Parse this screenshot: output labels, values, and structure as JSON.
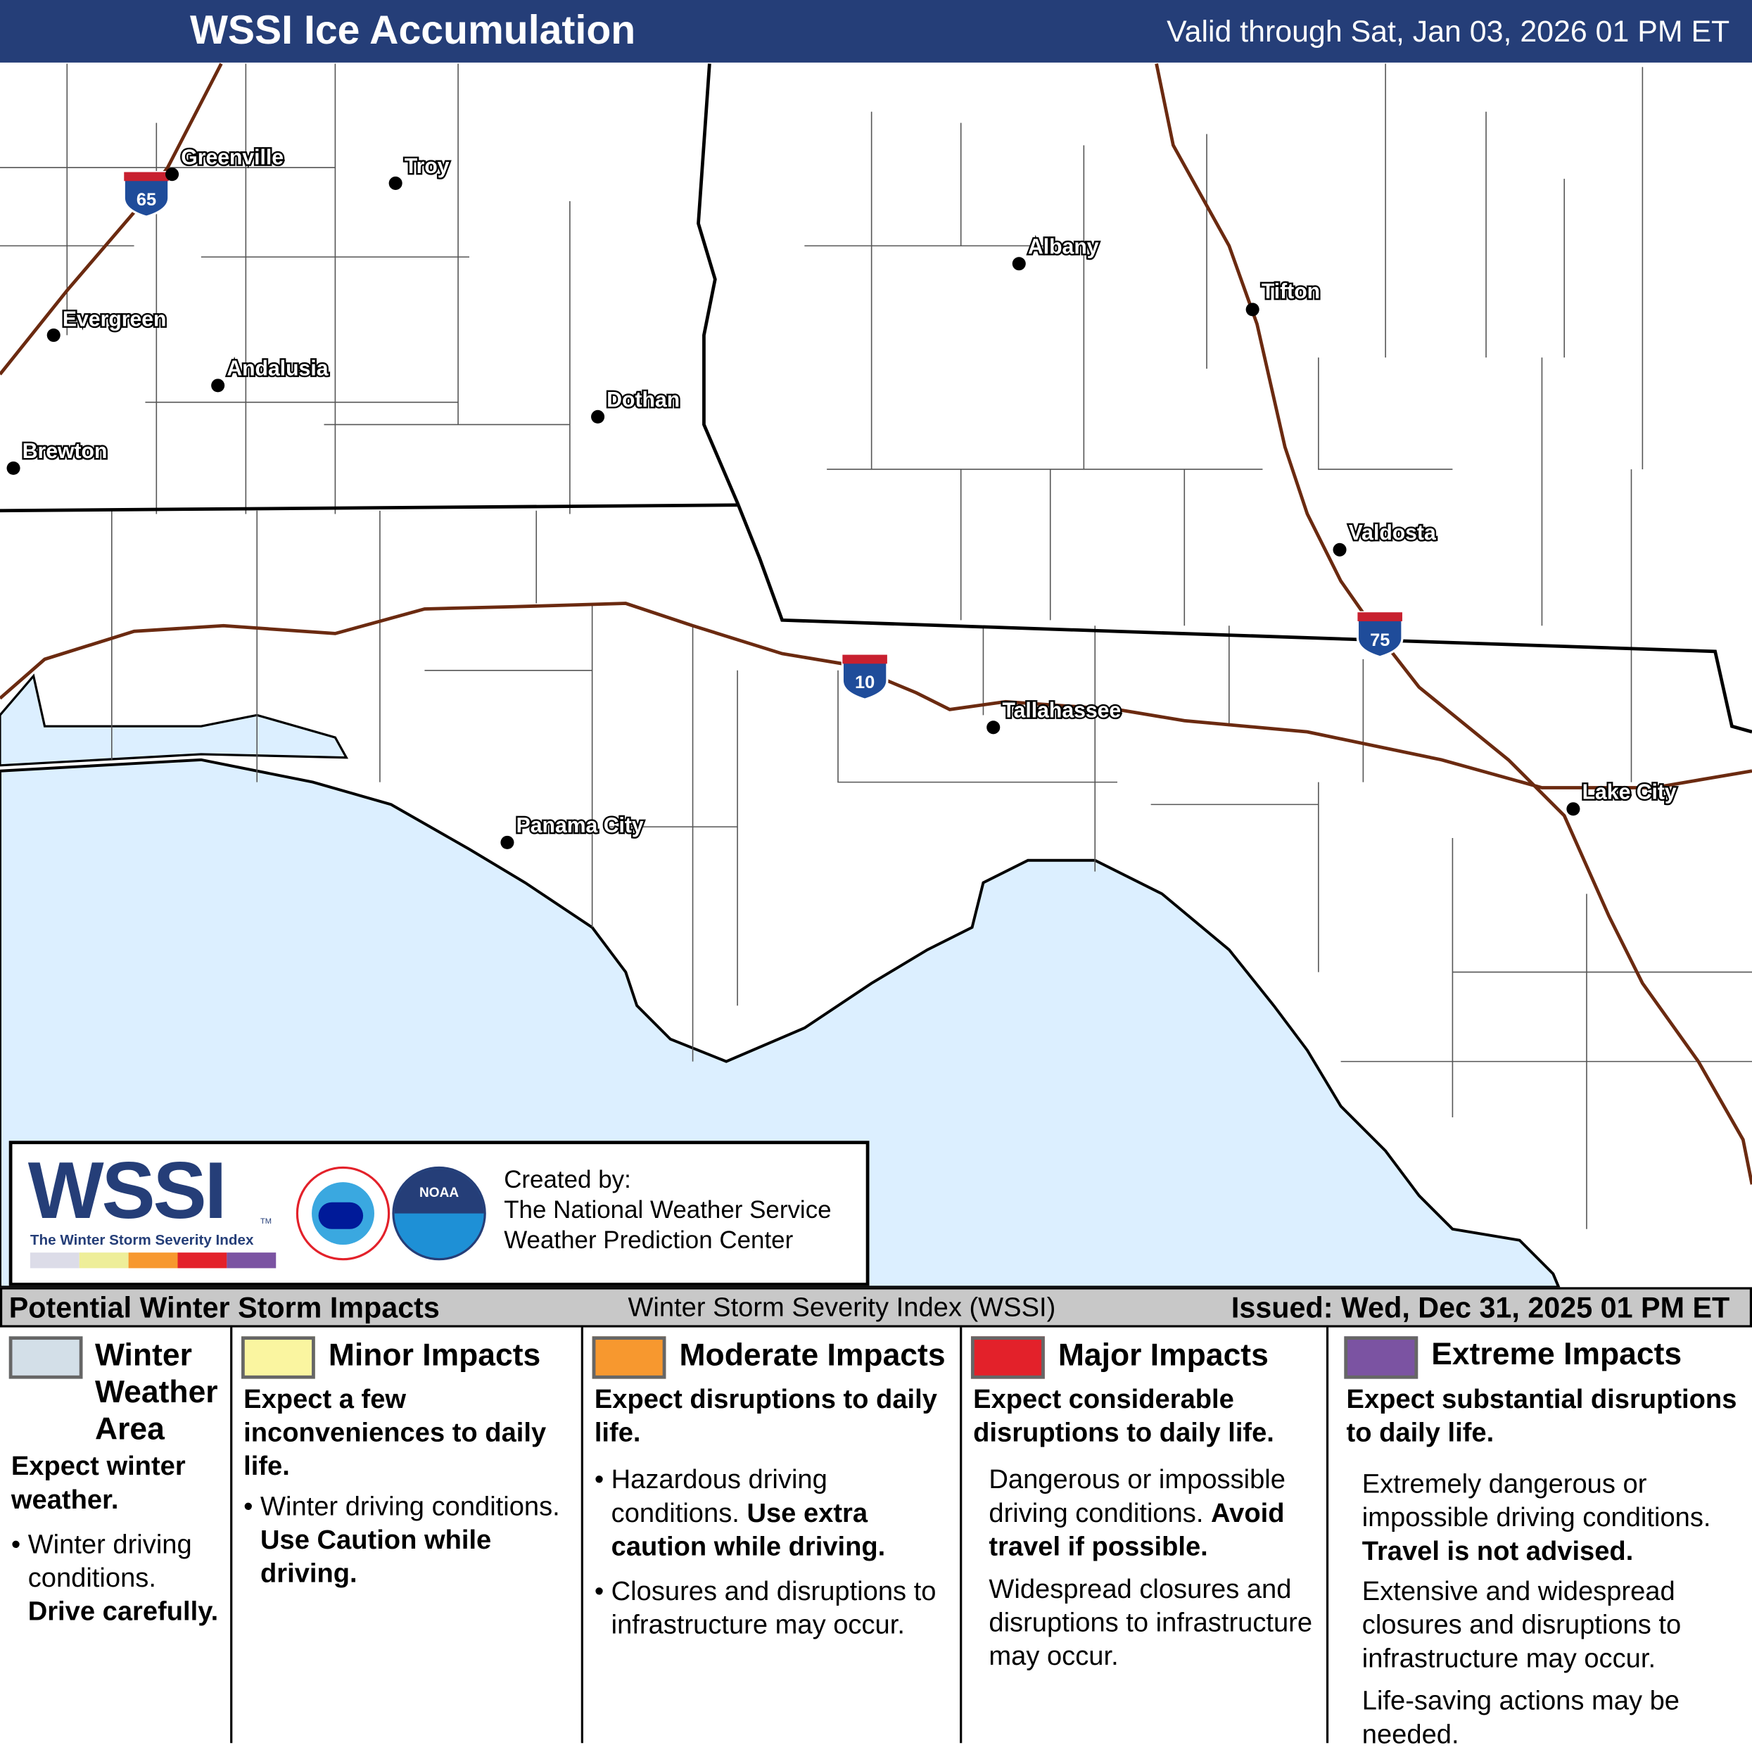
{
  "header": {
    "title": "WSSI Ice Accumulation",
    "valid": "Valid through Sat, Jan 03, 2026 01 PM ET"
  },
  "map": {
    "water_color": "#dcefff",
    "cities": [
      "Greenville",
      "Troy",
      "Evergreen",
      "Andalusia",
      "Brewton",
      "Dothan",
      "Albany",
      "Tifton",
      "Valdosta",
      "Tallahassee",
      "Panama City",
      "Lake City"
    ],
    "interstates": [
      "65",
      "10",
      "75"
    ]
  },
  "logo": {
    "wssi": "WSSI",
    "tm": "TM",
    "tagline": "The Winter Storm Severity Index",
    "scale_colors": [
      "#dcdce8",
      "#eeee99",
      "#f7982f",
      "#e3212a",
      "#7b53a2"
    ],
    "nws": "NATIONAL WEATHER SERVICE",
    "noaa": "NOAA",
    "created_by": "Created by:",
    "org1": "The National Weather Service",
    "org2": "Weather Prediction Center"
  },
  "legend_bar": {
    "left": "Potential Winter Storm Impacts",
    "center": "Winter Storm Severity Index (WSSI)",
    "right": "Issued: Wed, Dec 31, 2025 01 PM ET"
  },
  "legend": [
    {
      "title": "Winter Weather Area",
      "color": "#d3dfe8",
      "headline": "Expect winter weather.",
      "b1": "Winter driving conditions.",
      "b1b": "Drive carefully."
    },
    {
      "title": "Minor Impacts",
      "color": "#faf5a0",
      "headline": "Expect a few inconveniences to daily life.",
      "b1": "Winter driving conditions.",
      "b1b": "Use Caution while driving."
    },
    {
      "title": "Moderate Impacts",
      "color": "#f7982f",
      "headline": "Expect disruptions to daily life.",
      "b1": "Hazardous driving conditions.",
      "b1b": "Use extra caution while driving.",
      "b2": "Closures and disruptions to infrastructure may occur."
    },
    {
      "title": "Major Impacts",
      "color": "#e3212a",
      "headline": "Expect considerable disruptions to daily life.",
      "p1": "Dangerous or impossible driving conditions.",
      "p1b": "Avoid travel if possible.",
      "p2": "Widespread closures and disruptions to infrastructure may occur."
    },
    {
      "title": "Extreme Impacts",
      "color": "#7b53a2",
      "headline": "Expect substantial disruptions to daily life.",
      "p1": "Extremely dangerous or impossible driving conditions.",
      "p1b": "Travel is not advised.",
      "p2": "Extensive and widespread closures and disruptions to infrastructure may occur.",
      "p3": "Life-saving actions may be needed."
    }
  ]
}
